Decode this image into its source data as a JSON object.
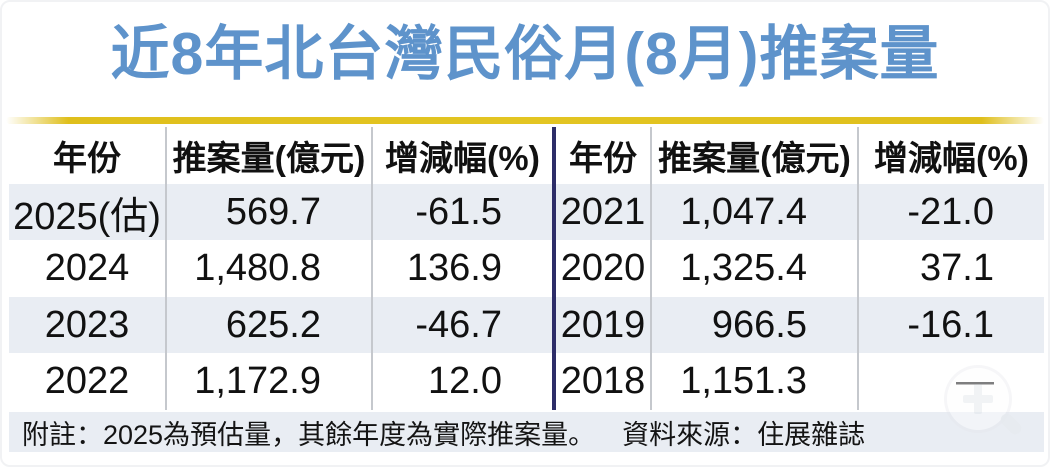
{
  "page": {
    "title": "近8年北台灣民俗月(8月)推案量"
  },
  "table": {
    "headers": {
      "year": "年份",
      "volume": "推案量(億元)",
      "change": "增減幅(%)"
    },
    "left_rows": [
      {
        "year": "2025(估)",
        "volume": "569.7",
        "change": "-61.5"
      },
      {
        "year": "2024",
        "volume": "1,480.8",
        "change": "136.9"
      },
      {
        "year": "2023",
        "volume": "625.2",
        "change": "-46.7"
      },
      {
        "year": "2022",
        "volume": "1,172.9",
        "change": "12.0"
      }
    ],
    "right_rows": [
      {
        "year": "2021",
        "volume": "1,047.4",
        "change": "-21.0"
      },
      {
        "year": "2020",
        "volume": "1,325.4",
        "change": "37.1"
      },
      {
        "year": "2019",
        "volume": "966.5",
        "change": "-16.1"
      },
      {
        "year": "2018",
        "volume": "1,151.3",
        "change": "—"
      }
    ]
  },
  "footer": {
    "note": "附註：2025為預估量，其餘年度為實際推案量。",
    "source": "資料來源：住展雜誌"
  },
  "chart_data": {
    "type": "table",
    "title": "近8年北台灣民俗月(8月)推案量",
    "columns": [
      "年份",
      "推案量(億元)",
      "增減幅(%)"
    ],
    "rows": [
      [
        "2025(估)",
        569.7,
        -61.5
      ],
      [
        "2024",
        1480.8,
        136.9
      ],
      [
        "2023",
        625.2,
        -46.7
      ],
      [
        "2022",
        1172.9,
        12.0
      ],
      [
        "2021",
        1047.4,
        -21.0
      ],
      [
        "2020",
        1325.4,
        37.1
      ],
      [
        "2019",
        966.5,
        -16.1
      ],
      [
        "2018",
        1151.3,
        null
      ]
    ],
    "note": "附註：2025為預估量，其餘年度為實際推案量。",
    "source": "資料來源：住展雜誌"
  },
  "colors": {
    "title_blue": "#5E93CB",
    "accent_gold": "#DFBF1C",
    "row_stripe": "#E9EDF3",
    "divider_navy": "#2D2D68",
    "column_line": "#C5C8CD",
    "text": "#111111"
  },
  "icons": {
    "zoom_watermark": "magnifier-plus-icon"
  }
}
